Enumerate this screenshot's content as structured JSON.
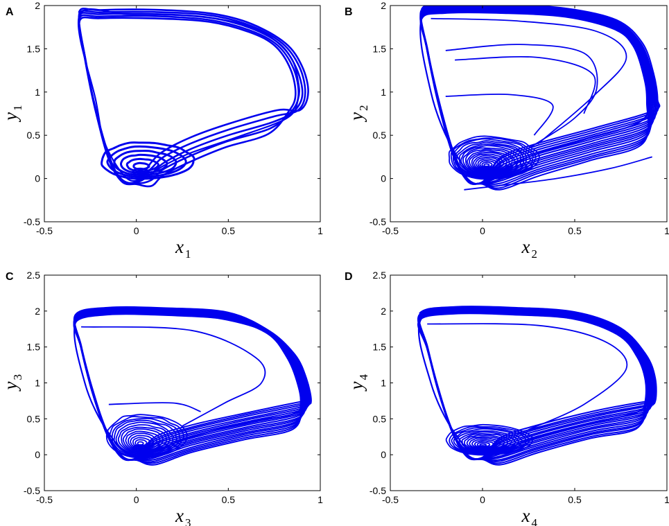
{
  "colors": {
    "trajectory": "#0000ee",
    "axes": "#000000",
    "background": "#ffffff"
  },
  "chart_data": [
    {
      "type": "line",
      "panel": "A",
      "xlabel": "x",
      "xlabel_sub": "1",
      "ylabel": "y",
      "ylabel_sub": "1",
      "xlim": [
        -0.5,
        1
      ],
      "ylim": [
        -0.5,
        2
      ],
      "xticks": [
        -0.5,
        0,
        0.5,
        1
      ],
      "xtick_labels": [
        "-0.5",
        "0",
        "0.5",
        "1"
      ],
      "yticks": [
        -0.5,
        0,
        0.5,
        1,
        1.5,
        2
      ],
      "ytick_labels": [
        "-0.5",
        "0",
        "0.5",
        "1",
        "1.5",
        "2"
      ],
      "grid": false,
      "series": [
        {
          "x": [
            -0.31,
            -0.05,
            0.3,
            0.55,
            0.72,
            0.84,
            0.88,
            0.88,
            0.82,
            0.55,
            0.3,
            0.15,
            0.05,
            -0.05,
            -0.17,
            -0.22,
            -0.31
          ],
          "y": [
            1.88,
            1.9,
            1.88,
            1.8,
            1.65,
            1.4,
            1.12,
            0.92,
            0.7,
            0.48,
            0.3,
            0.15,
            0.02,
            0.0,
            0.4,
            0.9,
            1.88
          ]
        }
      ]
    },
    {
      "type": "line",
      "panel": "B",
      "xlabel": "x",
      "xlabel_sub": "2",
      "ylabel": "y",
      "ylabel_sub": "2",
      "xlim": [
        -0.5,
        1
      ],
      "ylim": [
        -0.5,
        2
      ],
      "xticks": [
        -0.5,
        0,
        0.5,
        1
      ],
      "xtick_labels": [
        "-0.5",
        "0",
        "0.5",
        "1"
      ],
      "yticks": [
        -0.5,
        0,
        0.5,
        1,
        1.5,
        2
      ],
      "ytick_labels": [
        "-0.5",
        "0",
        "0.5",
        "1",
        "1.5",
        "2"
      ],
      "grid": false,
      "series": [
        {
          "x": [
            -0.32,
            0.0,
            0.4,
            0.75,
            0.88,
            0.9,
            0.85,
            0.55,
            0.25,
            0.0,
            -0.15,
            -0.28,
            -0.32
          ],
          "y": [
            1.9,
            1.95,
            1.9,
            1.72,
            1.35,
            0.9,
            0.65,
            0.45,
            0.25,
            0.0,
            0.3,
            1.0,
            1.9
          ]
        }
      ]
    },
    {
      "type": "line",
      "panel": "C",
      "xlabel": "x",
      "xlabel_sub": "3",
      "ylabel": "y",
      "ylabel_sub": "3",
      "xlim": [
        -0.5,
        1
      ],
      "ylim": [
        -0.5,
        2.5
      ],
      "xticks": [
        -0.5,
        0,
        0.5,
        1
      ],
      "xtick_labels": [
        "-0.5",
        "0",
        "0.5",
        "1"
      ],
      "yticks": [
        -0.5,
        0,
        0.5,
        1,
        1.5,
        2,
        2.5
      ],
      "ytick_labels": [
        "-0.5",
        "0",
        "0.5",
        "1",
        "1.5",
        "2",
        "2.5"
      ],
      "grid": false,
      "series": [
        {
          "x": [
            -0.32,
            0.0,
            0.4,
            0.72,
            0.85,
            0.9,
            0.88,
            0.6,
            0.3,
            0.0,
            -0.15,
            -0.28,
            -0.32
          ],
          "y": [
            1.9,
            1.97,
            1.92,
            1.7,
            1.35,
            0.95,
            0.6,
            0.45,
            0.25,
            0.0,
            0.3,
            1.0,
            1.9
          ]
        }
      ]
    },
    {
      "type": "line",
      "panel": "D",
      "xlabel": "x",
      "xlabel_sub": "4",
      "ylabel": "y",
      "ylabel_sub": "4",
      "xlim": [
        -0.5,
        1
      ],
      "ylim": [
        -0.5,
        2.5
      ],
      "xticks": [
        -0.5,
        0,
        0.5,
        1
      ],
      "xtick_labels": [
        "-0.5",
        "0",
        "0.5",
        "1"
      ],
      "yticks": [
        -0.5,
        0,
        0.5,
        1,
        1.5,
        2,
        2.5
      ],
      "ytick_labels": [
        "-0.5",
        "0",
        "0.5",
        "1",
        "1.5",
        "2",
        "2.5"
      ],
      "grid": false,
      "series": [
        {
          "x": [
            -0.33,
            0.0,
            0.4,
            0.72,
            0.86,
            0.9,
            0.86,
            0.6,
            0.3,
            0.0,
            -0.15,
            -0.28,
            -0.33
          ],
          "y": [
            1.9,
            1.98,
            1.93,
            1.72,
            1.35,
            0.95,
            0.62,
            0.45,
            0.25,
            0.0,
            0.3,
            1.0,
            1.9
          ]
        }
      ]
    }
  ]
}
